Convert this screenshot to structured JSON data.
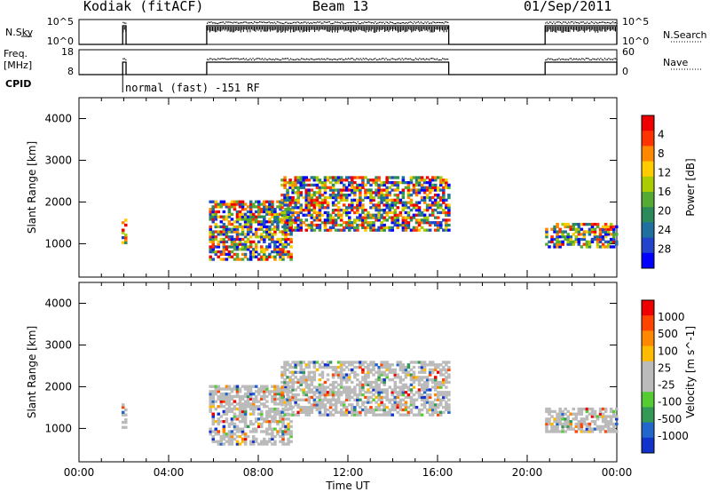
{
  "header": {
    "station": "Kodiak (fitACF)",
    "beam": "Beam 13",
    "date": "01/Sep/2011"
  },
  "side_labels": {
    "nsky": "N.Sky",
    "freq_line1": "Freq.",
    "freq_line2": "[MHz]",
    "cpid": "CPID",
    "nsearch": "N.Search",
    "nave": "Nave"
  },
  "cpid_text": "normal (fast) -151 RF",
  "colors": {
    "power": [
      "#0000ff",
      "#2244cc",
      "#1f6f9f",
      "#2a8a5a",
      "#55aa33",
      "#aacc00",
      "#ffcc00",
      "#ff8800",
      "#ff3300",
      "#ee0000"
    ],
    "velocity": [
      "#1133cc",
      "#2266cc",
      "#339955",
      "#55cc33",
      "#bbbbbb",
      "#bbbbbb",
      "#ffbb00",
      "#ff8800",
      "#ff4400",
      "#ee0000"
    ]
  },
  "chart_data": [
    {
      "type": "line",
      "title": "N.Sky",
      "left_ticks": [
        "10^5",
        "10^0"
      ],
      "right_ticks": [
        "10^5",
        "10^0"
      ],
      "right_label": "N.Search",
      "x_range": [
        0,
        24
      ]
    },
    {
      "type": "line",
      "title": "Freq. [MHz]",
      "left_ticks": [
        "18",
        "8"
      ],
      "right_ticks": [
        "60",
        "0"
      ],
      "right_label": "Nave",
      "x_range": [
        0,
        24
      ]
    },
    {
      "type": "heatmap",
      "ylabel": "Slant Range [km]",
      "yticks": [
        1000,
        2000,
        3000,
        4000
      ],
      "ylim": [
        200,
        4500
      ],
      "colorbar_label": "Power [dB]",
      "colorbar_ticks": [
        "4",
        "8",
        "12",
        "16",
        "20",
        "24",
        "28"
      ],
      "colorbar_range": [
        0,
        30
      ],
      "echo_regions": [
        {
          "t0": 1.9,
          "t1": 2.1,
          "r0": 1000,
          "r1": 1600
        },
        {
          "t0": 5.8,
          "t1": 9.5,
          "r0": 600,
          "r1": 2000
        },
        {
          "t0": 9.0,
          "t1": 16.5,
          "r0": 1300,
          "r1": 2600
        },
        {
          "t0": 20.8,
          "t1": 24.0,
          "r0": 900,
          "r1": 1500
        }
      ]
    },
    {
      "type": "heatmap",
      "ylabel": "Slant Range [km]",
      "yticks": [
        1000,
        2000,
        3000,
        4000
      ],
      "ylim": [
        200,
        4500
      ],
      "xlabel": "Time UT",
      "xticks": [
        "00:00",
        "04:00",
        "08:00",
        "12:00",
        "16:00",
        "20:00",
        "00:00"
      ],
      "colorbar_label": "Velocity [m s^-1]",
      "colorbar_ticks": [
        "1000",
        "500",
        "100",
        "25",
        "-25",
        "-100",
        "-500",
        "-1000"
      ],
      "colorbar_range": [
        -1000,
        1000
      ]
    }
  ]
}
